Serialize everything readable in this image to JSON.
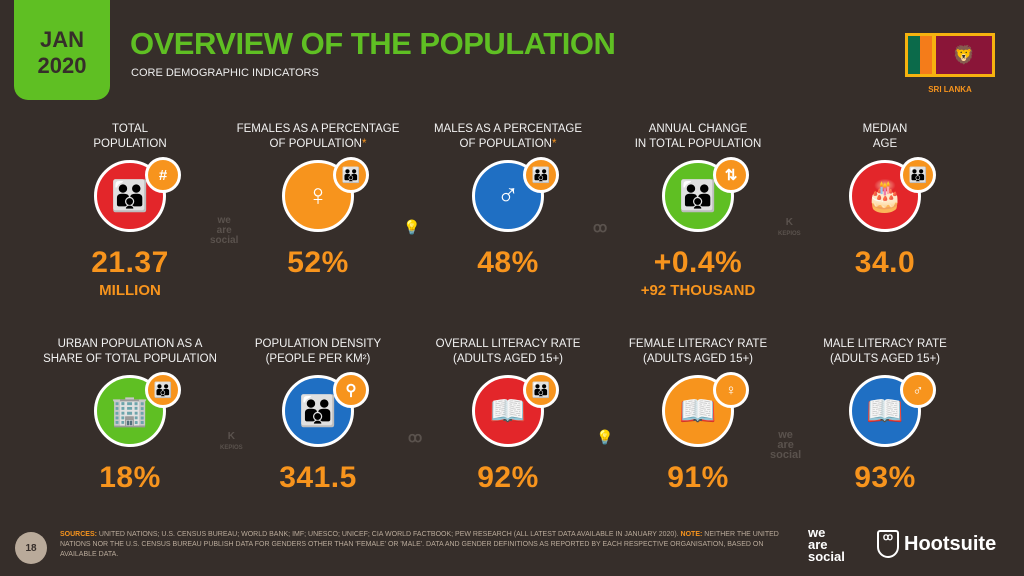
{
  "header": {
    "month": "JAN",
    "year": "2020",
    "title": "OVERVIEW OF THE POPULATION",
    "subtitle": "CORE DEMOGRAPHIC INDICATORS",
    "country": "SRI LANKA"
  },
  "colors": {
    "background": "#362e2a",
    "green": "#5fbf23",
    "orange": "#f7941d",
    "red": "#e3262a",
    "blue": "#1f6fc3",
    "green_circle": "#5fbf23"
  },
  "row1": [
    {
      "label1": "TOTAL",
      "label2": "POPULATION",
      "asterisk": "",
      "value": "21.37",
      "sub": "MILLION",
      "icon": "people-icon",
      "badge": "#",
      "color": "#e3262a"
    },
    {
      "label1": "FEMALES AS A PERCENTAGE",
      "label2": "OF POPULATION",
      "asterisk": "*",
      "value": "52%",
      "sub": "",
      "icon": "female-icon",
      "badge": "people",
      "color": "#f7941d"
    },
    {
      "label1": "MALES AS A PERCENTAGE",
      "label2": "OF POPULATION",
      "asterisk": "*",
      "value": "48%",
      "sub": "",
      "icon": "male-icon",
      "badge": "people",
      "color": "#1f6fc3"
    },
    {
      "label1": "ANNUAL CHANGE",
      "label2": "IN TOTAL POPULATION",
      "asterisk": "",
      "value": "+0.4%",
      "sub": "+92 THOUSAND",
      "icon": "people-icon",
      "badge": "up-down-arrows",
      "color": "#5fbf23"
    },
    {
      "label1": "MEDIAN",
      "label2": "AGE",
      "asterisk": "",
      "value": "34.0",
      "sub": "",
      "icon": "birthday-cake-icon",
      "badge": "people",
      "color": "#e3262a"
    }
  ],
  "row2": [
    {
      "label1": "URBAN POPULATION AS A",
      "label2": "SHARE OF TOTAL POPULATION",
      "value": "18%",
      "icon": "building-icon",
      "badge": "people",
      "color": "#5fbf23"
    },
    {
      "label1": "POPULATION DENSITY",
      "label2": "(PEOPLE PER KM²)",
      "value": "341.5",
      "icon": "people-icon",
      "badge": "location-pin",
      "color": "#1f6fc3"
    },
    {
      "label1": "OVERALL LITERACY RATE",
      "label2": "(ADULTS AGED 15+)",
      "value": "92%",
      "icon": "book-icon",
      "badge": "people",
      "color": "#e3262a"
    },
    {
      "label1": "FEMALE LITERACY RATE",
      "label2": "(ADULTS AGED 15+)",
      "value": "91%",
      "icon": "book-icon",
      "badge": "female",
      "color": "#f7941d"
    },
    {
      "label1": "MALE LITERACY RATE",
      "label2": "(ADULTS AGED 15+)",
      "value": "93%",
      "icon": "book-icon",
      "badge": "male",
      "color": "#1f6fc3"
    }
  ],
  "watermarks": {
    "we_are_social": "we are social",
    "kepios": "KEPIOS"
  },
  "footer": {
    "page": "18",
    "sources_label": "SOURCES:",
    "sources": " UNITED NATIONS; U.S. CENSUS BUREAU; WORLD BANK; IMF; UNESCO; UNICEF; CIA WORLD FACTBOOK; PEW RESEARCH (ALL LATEST DATA AVAILABLE IN JANUARY 2020). ",
    "note_label": "NOTE:",
    "note": " NEITHER THE UNITED NATIONS NOR THE U.S. CENSUS BUREAU PUBLISH DATA FOR GENDERS OTHER THAN 'FEMALE' OR 'MALE'. DATA AND GENDER DEFINITIONS AS REPORTED BY EACH RESPECTIVE ORGANISATION, BASED ON AVAILABLE DATA.",
    "brand1": "we are social",
    "brand2": "Hootsuite"
  }
}
